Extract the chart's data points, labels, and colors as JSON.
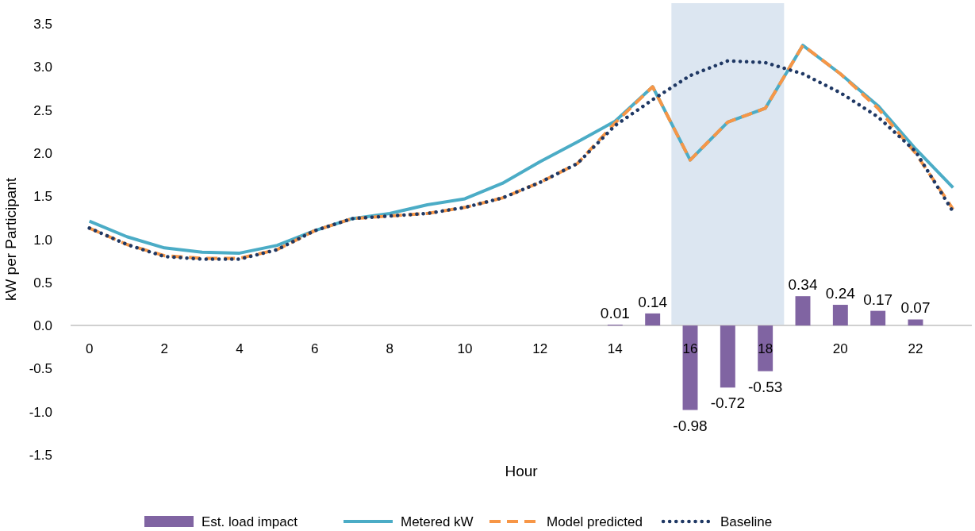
{
  "chart_data": {
    "type": "bar",
    "xlabel": "Hour",
    "ylabel": "kW per Participant",
    "categories": [
      "0",
      null,
      "2",
      null,
      "4",
      null,
      "6",
      null,
      "8",
      null,
      "10",
      null,
      "12",
      null,
      "14",
      null,
      "16",
      null,
      "18",
      null,
      "20",
      null,
      "22",
      null
    ],
    "series": [
      {
        "name": "Est. load impact",
        "color": "#8064a2",
        "values": [
          null,
          null,
          null,
          null,
          null,
          null,
          null,
          null,
          null,
          null,
          null,
          null,
          null,
          null,
          0.01,
          0.14,
          -0.98,
          -0.72,
          -0.53,
          0.34,
          0.24,
          0.17,
          0.07,
          null
        ],
        "data_labels": true
      },
      {
        "name": "Metered kW",
        "type": "line",
        "color": "#4bacc6",
        "line_style": "solid",
        "values": [
          1.21,
          1.03,
          0.9,
          0.85,
          0.84,
          0.93,
          1.1,
          1.24,
          1.3,
          1.4,
          1.47,
          1.65,
          1.9,
          2.13,
          2.37,
          2.77,
          1.92,
          2.36,
          2.52,
          3.25,
          2.92,
          2.55,
          2.05,
          1.6
        ]
      },
      {
        "name": "Model predicted",
        "type": "line",
        "color": "#f79646",
        "line_style": "dashed",
        "values": [
          1.13,
          0.94,
          0.81,
          0.78,
          0.78,
          0.88,
          1.1,
          1.24,
          1.27,
          1.3,
          1.37,
          1.48,
          1.66,
          1.88,
          2.35,
          2.77,
          1.92,
          2.36,
          2.52,
          3.25,
          2.92,
          2.52,
          2.0,
          1.35
        ]
      },
      {
        "name": "Baseline",
        "type": "line",
        "color": "#1f3864",
        "line_style": "dotted",
        "values": [
          1.13,
          0.94,
          0.8,
          0.77,
          0.77,
          0.88,
          1.1,
          1.24,
          1.27,
          1.3,
          1.37,
          1.48,
          1.66,
          1.88,
          2.32,
          2.62,
          2.9,
          3.07,
          3.05,
          2.92,
          2.7,
          2.42,
          2.02,
          1.32
        ]
      }
    ],
    "bands": [
      {
        "axis": "x",
        "from": "16",
        "to": "18",
        "color": "#dce6f1"
      }
    ],
    "ylim": [
      -1.5,
      3.5
    ],
    "yticks": [
      {
        "value": -1.5,
        "label": "-1.5"
      },
      {
        "value": -1,
        "label": "-1.0"
      },
      {
        "value": -0.5,
        "label": "-0.5"
      },
      {
        "value": 0,
        "label": "0.0"
      },
      {
        "value": 0.5,
        "label": "0.5"
      },
      {
        "value": 1,
        "label": "1.0"
      },
      {
        "value": 1.5,
        "label": "1.5"
      },
      {
        "value": 2,
        "label": "2.0"
      },
      {
        "value": 2.5,
        "label": "2.5"
      },
      {
        "value": 3,
        "label": "3.0"
      },
      {
        "value": 3.5,
        "label": "3.5"
      }
    ],
    "grid": false,
    "legend": "bottom"
  }
}
